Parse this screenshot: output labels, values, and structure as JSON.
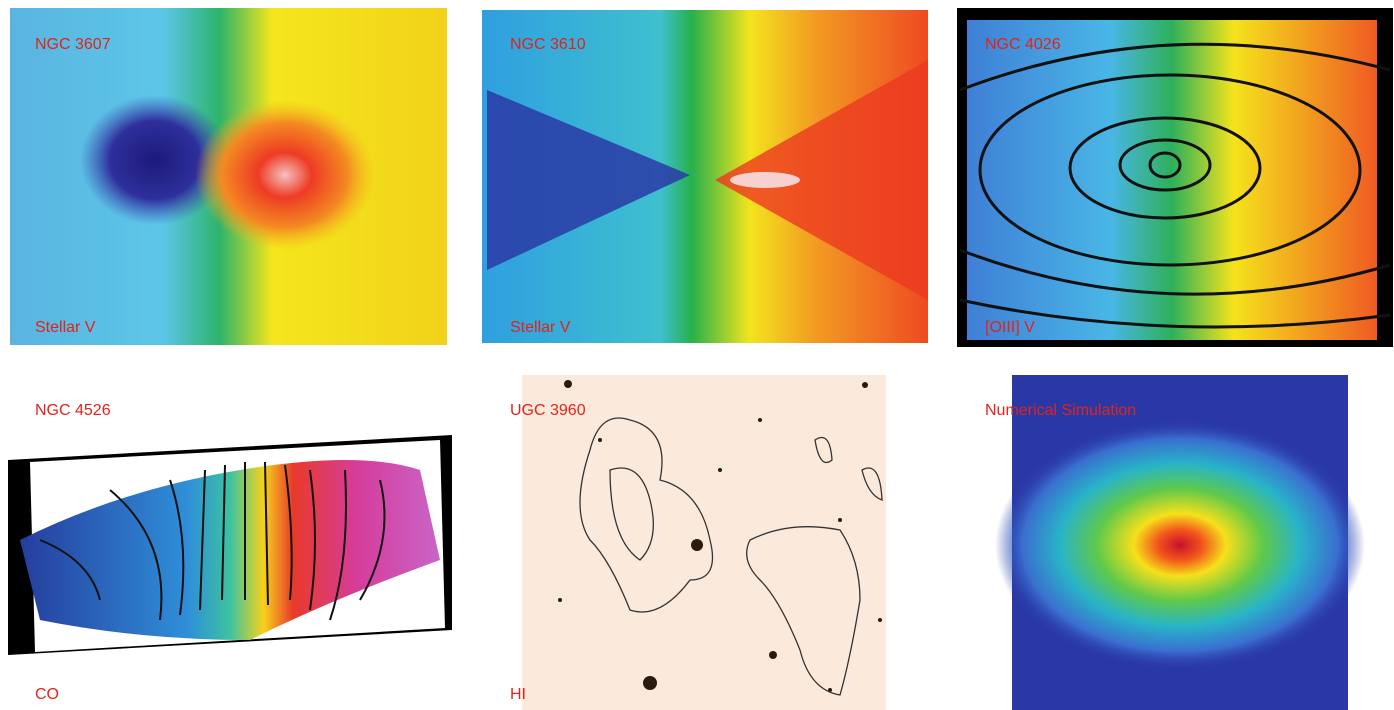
{
  "panels": [
    {
      "name": "NGC 3607",
      "label": "Stellar V"
    },
    {
      "name": "NGC 3610",
      "label": "Stellar V"
    },
    {
      "name": "NGC 4026",
      "label": "[OIII] V"
    },
    {
      "name": "NGC 4526",
      "label": "CO"
    },
    {
      "name": "UGC 3960",
      "label": "HI"
    },
    {
      "name": "Numerical Simulation",
      "label": ""
    }
  ]
}
